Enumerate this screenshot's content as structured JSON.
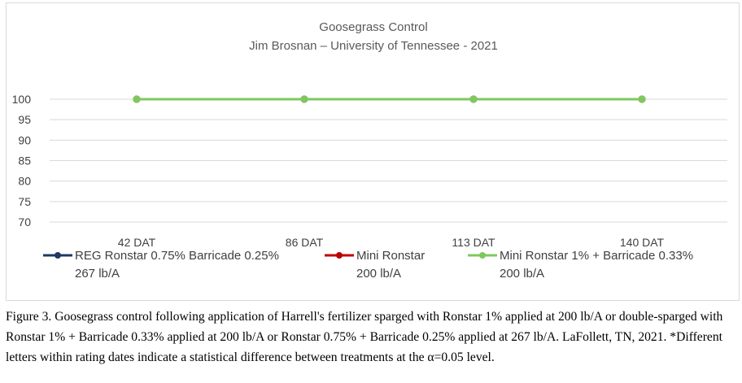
{
  "chart_data": {
    "type": "line",
    "title": "Goosegrass Control",
    "subtitle": "Jim Brosnan – University of Tennessee - 2021",
    "categories": [
      "42 DAT",
      "86 DAT",
      "113 DAT",
      "140 DAT"
    ],
    "y_ticks": [
      "100",
      "95",
      "90",
      "85",
      "80",
      "75",
      "70"
    ],
    "ylim": [
      70,
      100
    ],
    "grid": true,
    "legend_position": "bottom",
    "series": [
      {
        "name_line1": "REG Ronstar 0.75% Barricade 0.25%",
        "name_line2": "267 lb/A",
        "color": "#1f3864",
        "values": [
          100,
          100,
          100,
          100
        ]
      },
      {
        "name_line1": "Mini Ronstar",
        "name_line2": "200 lb/A",
        "color": "#c00000",
        "values": [
          100,
          100,
          100,
          100
        ]
      },
      {
        "name_line1": "Mini Ronstar 1% + Barricade 0.33%",
        "name_line2": "200 lb/A",
        "color": "#7dc95e",
        "values": [
          100,
          100,
          100,
          100
        ]
      }
    ]
  },
  "caption": "Figure 3.  Goosegrass control following application of Harrell's fertilizer sparged with Ronstar 1% applied at 200 lb/A or double-sparged with Ronstar 1% + Barricade 0.33% applied at 200 lb/A or Ronstar 0.75% + Barricade 0.25% applied at 267 lb/A.  LaFollett, TN, 2021. *Different letters within rating dates indicate a statistical difference between treatments at the α=0.05 level."
}
